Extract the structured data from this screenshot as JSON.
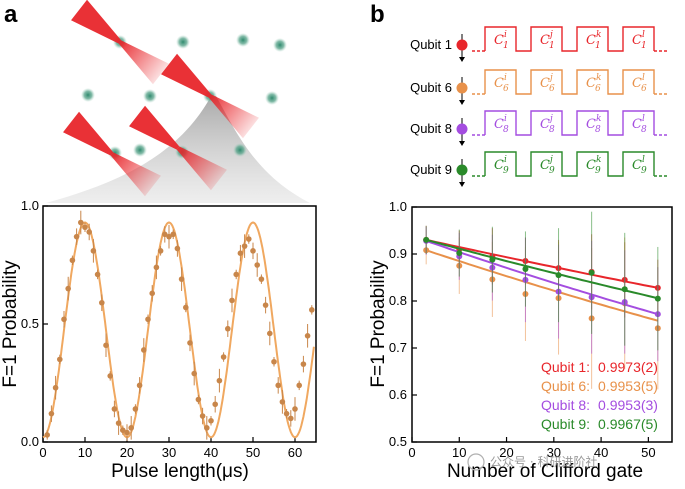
{
  "panel_labels": {
    "a": "a",
    "b": "b"
  },
  "watermark": "公众号 · 科研进阶社",
  "colors": {
    "laser": "#e8262b",
    "atom": "#4f9a82",
    "orange": "#e8914a",
    "purple": "#a44de0",
    "green": "#2a8a2a",
    "red": "#e8262b",
    "fit_orange": "#f0a860",
    "dot_orange": "#c8864a"
  },
  "qubits": [
    {
      "label": "Qubit 1",
      "color": "#e8262b",
      "sub": "1",
      "gates": [
        "i",
        "j",
        "k",
        "l"
      ]
    },
    {
      "label": "Qubit 6",
      "color": "#e8914a",
      "sub": "6",
      "gates": [
        "i",
        "j",
        "k",
        "l"
      ]
    },
    {
      "label": "Qubit 8",
      "color": "#a44de0",
      "sub": "8",
      "gates": [
        "i",
        "j",
        "k",
        "l"
      ]
    },
    {
      "label": "Qubit 9",
      "color": "#2a8a2a",
      "sub": "9",
      "gates": [
        "i",
        "j",
        "k",
        "l"
      ]
    }
  ],
  "gate_symbol": "C",
  "chart_data": [
    {
      "type": "scatter",
      "xlabel": "Pulse length(μs)",
      "ylabel": "F=1 Probability",
      "xlim": [
        0,
        65
      ],
      "ylim": [
        0.0,
        1.0
      ],
      "xticks": [
        0,
        10,
        20,
        30,
        40,
        50,
        60
      ],
      "yticks": [
        0.0,
        0.5,
        1.0
      ],
      "ytick_labels": [
        "0.0",
        "0.5",
        "1.0"
      ],
      "fit": {
        "offset": 0.475,
        "amplitude": 0.455,
        "period_us": 20,
        "peak_at_us": 10
      },
      "points": [
        {
          "x": 1,
          "y": 0.03
        },
        {
          "x": 2,
          "y": 0.12
        },
        {
          "x": 3,
          "y": 0.23
        },
        {
          "x": 4,
          "y": 0.35
        },
        {
          "x": 5,
          "y": 0.52
        },
        {
          "x": 6,
          "y": 0.65
        },
        {
          "x": 7,
          "y": 0.77
        },
        {
          "x": 8,
          "y": 0.87
        },
        {
          "x": 9,
          "y": 0.93
        },
        {
          "x": 10,
          "y": 0.91
        },
        {
          "x": 11,
          "y": 0.89
        },
        {
          "x": 12,
          "y": 0.81
        },
        {
          "x": 13,
          "y": 0.71
        },
        {
          "x": 14,
          "y": 0.59
        },
        {
          "x": 15,
          "y": 0.41
        },
        {
          "x": 16,
          "y": 0.28
        },
        {
          "x": 17,
          "y": 0.14
        },
        {
          "x": 18,
          "y": 0.08
        },
        {
          "x": 19,
          "y": 0.05
        },
        {
          "x": 20,
          "y": 0.04
        },
        {
          "x": 21,
          "y": 0.06
        },
        {
          "x": 22,
          "y": 0.14
        },
        {
          "x": 23,
          "y": 0.24
        },
        {
          "x": 24,
          "y": 0.39
        },
        {
          "x": 25,
          "y": 0.52
        },
        {
          "x": 26,
          "y": 0.63
        },
        {
          "x": 27,
          "y": 0.74
        },
        {
          "x": 28,
          "y": 0.81
        },
        {
          "x": 29,
          "y": 0.88
        },
        {
          "x": 30,
          "y": 0.87
        },
        {
          "x": 31,
          "y": 0.88
        },
        {
          "x": 32,
          "y": 0.82
        },
        {
          "x": 33,
          "y": 0.69
        },
        {
          "x": 34,
          "y": 0.57
        },
        {
          "x": 35,
          "y": 0.42
        },
        {
          "x": 36,
          "y": 0.29
        },
        {
          "x": 37,
          "y": 0.18
        },
        {
          "x": 38,
          "y": 0.11
        },
        {
          "x": 39,
          "y": 0.06
        },
        {
          "x": 40,
          "y": 0.09
        },
        {
          "x": 41,
          "y": 0.16
        },
        {
          "x": 42,
          "y": 0.26
        },
        {
          "x": 43,
          "y": 0.36
        },
        {
          "x": 44,
          "y": 0.48
        },
        {
          "x": 45,
          "y": 0.6
        },
        {
          "x": 46,
          "y": 0.71
        },
        {
          "x": 47,
          "y": 0.8
        },
        {
          "x": 48,
          "y": 0.83
        },
        {
          "x": 49,
          "y": 0.86
        },
        {
          "x": 50,
          "y": 0.81
        },
        {
          "x": 51,
          "y": 0.75
        },
        {
          "x": 52,
          "y": 0.69
        },
        {
          "x": 53,
          "y": 0.58
        },
        {
          "x": 54,
          "y": 0.46
        },
        {
          "x": 55,
          "y": 0.34
        },
        {
          "x": 56,
          "y": 0.24
        },
        {
          "x": 57,
          "y": 0.17
        },
        {
          "x": 58,
          "y": 0.12
        },
        {
          "x": 59,
          "y": 0.1
        },
        {
          "x": 60,
          "y": 0.14
        },
        {
          "x": 61,
          "y": 0.24
        },
        {
          "x": 62,
          "y": 0.33
        },
        {
          "x": 63,
          "y": 0.45
        },
        {
          "x": 64,
          "y": 0.56
        }
      ]
    },
    {
      "type": "scatter",
      "xlabel": "Number of Clifford gate",
      "ylabel": "F=1 Probability",
      "xlim": [
        0,
        55
      ],
      "ylim": [
        0.5,
        1.0
      ],
      "xticks": [
        0,
        10,
        20,
        30,
        40,
        50
      ],
      "yticks": [
        0.5,
        0.6,
        0.7,
        0.8,
        0.9,
        1.0
      ],
      "ytick_labels": [
        "0.5",
        "0.6",
        "0.7",
        "0.8",
        "0.9",
        "1.0"
      ],
      "x": [
        3,
        10,
        17,
        24,
        31,
        38,
        45,
        52
      ],
      "series": [
        {
          "name": "Qubit 1",
          "fidelity": "0.9973(2)",
          "color": "#e8262b",
          "fit": {
            "start": 0.93,
            "end": 0.828
          },
          "values": [
            0.93,
            0.91,
            0.895,
            0.885,
            0.87,
            0.862,
            0.845,
            0.828
          ],
          "errors": [
            0.03,
            0.04,
            0.06,
            0.05,
            0.06,
            0.08,
            0.08,
            0.06
          ]
        },
        {
          "name": "Qubit 6",
          "fidelity": "0.9953(5)",
          "color": "#e8914a",
          "fit": {
            "start": 0.908,
            "end": 0.758
          },
          "values": [
            0.908,
            0.875,
            0.846,
            0.815,
            0.806,
            0.763,
            0.795,
            0.742
          ],
          "errors": [
            0.03,
            0.06,
            0.08,
            0.1,
            0.12,
            0.15,
            0.14,
            0.13
          ]
        },
        {
          "name": "Qubit 8",
          "fidelity": "0.9953(3)",
          "color": "#a44de0",
          "fit": {
            "start": 0.928,
            "end": 0.772
          },
          "values": [
            0.928,
            0.895,
            0.871,
            0.845,
            0.82,
            0.808,
            0.798,
            0.772
          ],
          "errors": [
            0.03,
            0.05,
            0.07,
            0.09,
            0.1,
            0.12,
            0.11,
            0.1
          ]
        },
        {
          "name": "Qubit 9",
          "fidelity": "0.9967(5)",
          "color": "#2a8a2a",
          "fit": {
            "start": 0.93,
            "end": 0.806
          },
          "values": [
            0.93,
            0.902,
            0.888,
            0.868,
            0.855,
            0.86,
            0.825,
            0.805
          ],
          "errors": [
            0.03,
            0.05,
            0.07,
            0.08,
            0.1,
            0.13,
            0.12,
            0.11
          ]
        }
      ]
    }
  ]
}
